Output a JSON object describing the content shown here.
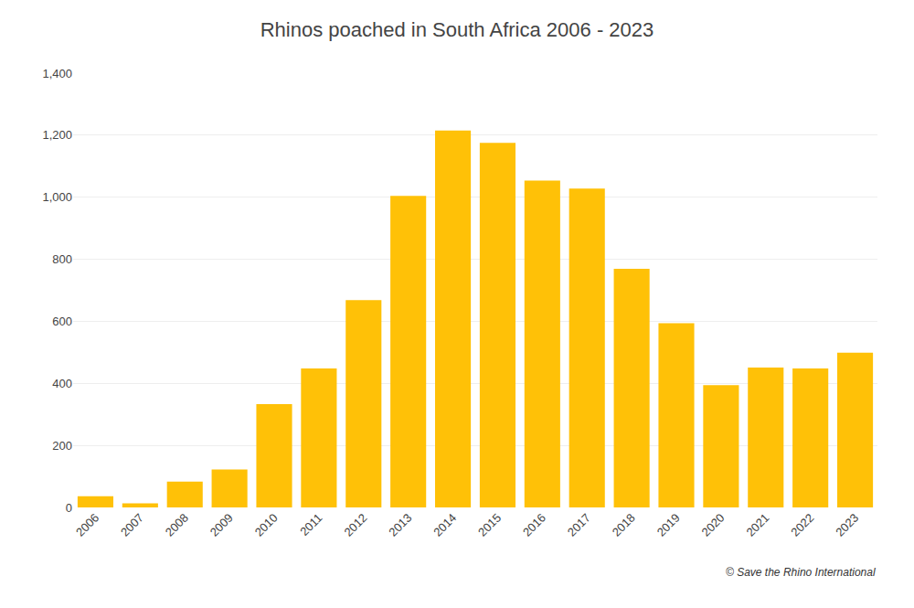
{
  "chart_data": {
    "type": "bar",
    "title": "Rhinos poached in South Africa 2006 - 2023",
    "categories": [
      "2006",
      "2007",
      "2008",
      "2009",
      "2010",
      "2011",
      "2012",
      "2013",
      "2014",
      "2015",
      "2016",
      "2017",
      "2018",
      "2019",
      "2020",
      "2021",
      "2022",
      "2023"
    ],
    "values": [
      36,
      13,
      83,
      122,
      333,
      448,
      668,
      1004,
      1215,
      1175,
      1054,
      1028,
      769,
      594,
      394,
      451,
      448,
      499
    ],
    "color": "#FFC107",
    "ylim": [
      0,
      1400
    ],
    "yticks": [
      0,
      200,
      400,
      600,
      800,
      {
        "value": 1000,
        "label": "1,000"
      },
      {
        "value": 1200,
        "label": "1,200"
      },
      {
        "value": 1400,
        "label": "1,400"
      }
    ],
    "grid": true,
    "annotation": "© Save the Rhino International"
  }
}
